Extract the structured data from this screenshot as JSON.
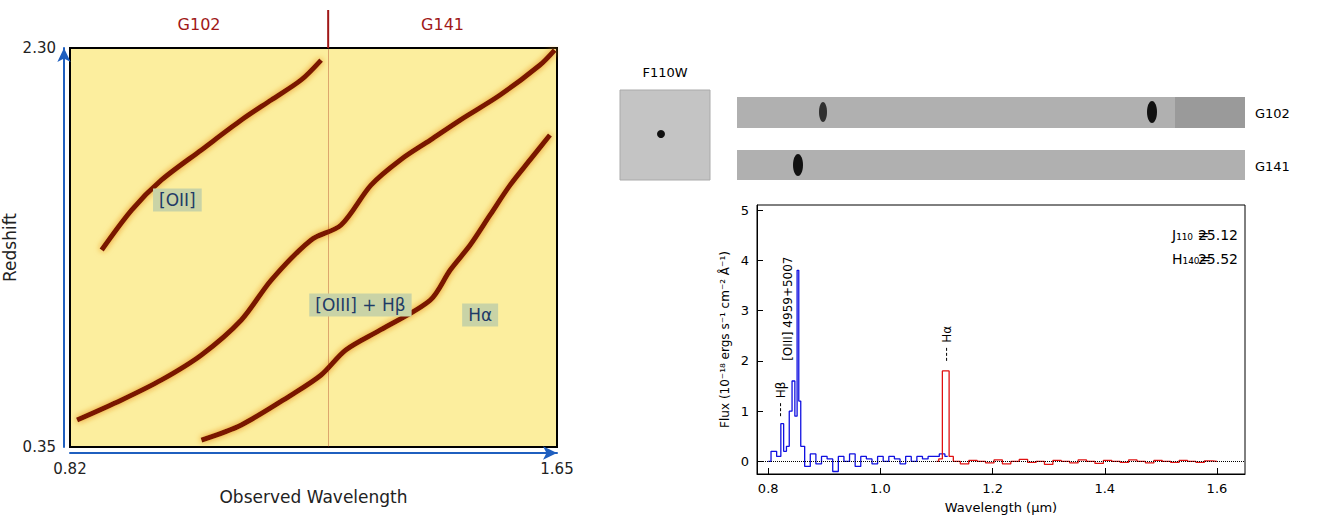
{
  "chart_data": [
    {
      "type": "line",
      "x_label": "Observed Wavelength",
      "y_label": "Redshift",
      "xlim": [
        0.82,
        1.65
      ],
      "ylim": [
        0.35,
        2.3
      ],
      "xticks": [
        0.82,
        1.65
      ],
      "yticks": [
        0.35,
        {
          "value": 2.3,
          "label": "2.30"
        }
      ],
      "grisms": [
        "G102",
        "G141"
      ],
      "grism_boundary": 1.26,
      "series": [
        {
          "name": "[OII]",
          "color": "#7a1605",
          "label_x": 1.003,
          "label_y": 1.557,
          "x": [
            0.874,
            0.925,
            0.976,
            1.044,
            1.112,
            1.163,
            1.214,
            1.248
          ],
          "values": [
            1.313,
            1.508,
            1.655,
            1.802,
            1.948,
            2.046,
            2.144,
            2.241
          ]
        },
        {
          "name": "[OIII] + Hβ",
          "color": "#7a1605",
          "label_x": 1.315,
          "label_y": 1.044,
          "x": [
            0.832,
            0.908,
            0.976,
            1.044,
            1.112,
            1.163,
            1.231,
            1.282,
            1.333,
            1.383,
            1.434,
            1.485,
            1.553,
            1.621,
            1.646
          ],
          "values": [
            0.482,
            0.58,
            0.678,
            0.8,
            0.971,
            1.166,
            1.362,
            1.435,
            1.63,
            1.753,
            1.85,
            1.948,
            2.07,
            2.217,
            2.29
          ]
        },
        {
          "name": "Hα",
          "color": "#7a1605",
          "label_x": 1.519,
          "label_y": 0.995,
          "x": [
            1.044,
            1.112,
            1.197,
            1.248,
            1.29,
            1.349,
            1.434,
            1.468,
            1.502,
            1.536,
            1.57,
            1.604,
            1.638
          ],
          "values": [
            0.384,
            0.458,
            0.604,
            0.702,
            0.824,
            0.922,
            1.068,
            1.215,
            1.337,
            1.484,
            1.63,
            1.753,
            1.875
          ]
        }
      ]
    },
    {
      "type": "line",
      "x_label": "Wavelength (µm)",
      "y_label": "Flux (10⁻¹⁸ ergs s⁻¹ cm⁻² Å⁻¹)",
      "xlim": [
        0.78,
        1.65
      ],
      "ylim": [
        -0.25,
        5.1
      ],
      "xticks": [
        0.8,
        {
          "value": 1,
          "label": "1.0"
        },
        1.2,
        1.4,
        1.6
      ],
      "yticks": [
        0,
        1,
        2,
        3,
        4,
        5
      ],
      "series": [
        {
          "color": "#1010e0",
          "line_style": "solid",
          "x": [
            0.8,
            0.81,
            0.82,
            0.825,
            0.83,
            0.835,
            0.84,
            0.845,
            0.85,
            0.853,
            0.856,
            0.86,
            0.87,
            0.88,
            0.89,
            0.9,
            0.91,
            0.92,
            0.93,
            0.94,
            0.95,
            0.96,
            0.97,
            0.98,
            0.99,
            1.0,
            1.01,
            1.02,
            1.03,
            1.04,
            1.05,
            1.06,
            1.07,
            1.08,
            1.09,
            1.1,
            1.11,
            1.12
          ],
          "values": [
            0.0,
            0.2,
            0.1,
            0.75,
            0.2,
            0.3,
            1.0,
            1.6,
            0.9,
            3.8,
            1.2,
            0.3,
            -0.1,
            0.15,
            -0.05,
            0.1,
            0.05,
            -0.2,
            0.1,
            0.0,
            0.15,
            -0.1,
            0.1,
            0.05,
            -0.05,
            0.1,
            0.0,
            0.1,
            0.05,
            -0.05,
            0.1,
            0.0,
            0.1,
            0.05,
            0.1,
            0.1,
            0.15,
            0.1
          ]
        },
        {
          "color": "#e01010",
          "line_style": "solid",
          "x": [
            1.1,
            1.108,
            1.113,
            1.12,
            1.125,
            1.135,
            1.15,
            1.165,
            1.18,
            1.195,
            1.21,
            1.225,
            1.24,
            1.255,
            1.27,
            1.285,
            1.3,
            1.315,
            1.33,
            1.345,
            1.36,
            1.375,
            1.39,
            1.405,
            1.42,
            1.435,
            1.45,
            1.465,
            1.48,
            1.495,
            1.51,
            1.525,
            1.54,
            1.555,
            1.57,
            1.585,
            1.6
          ],
          "values": [
            0.0,
            0.05,
            1.8,
            1.8,
            0.1,
            0.0,
            -0.05,
            0.02,
            0.0,
            -0.03,
            0.03,
            -0.05,
            0.0,
            0.04,
            -0.02,
            0.0,
            -0.06,
            0.02,
            0.0,
            -0.03,
            0.03,
            0.0,
            -0.04,
            0.02,
            0.0,
            -0.02,
            0.03,
            0.0,
            -0.03,
            0.02,
            0.0,
            -0.02,
            0.02,
            0.0,
            -0.02,
            0.01,
            0.0
          ]
        }
      ],
      "reference_lines": [
        {
          "y": 0,
          "line_style": "dotted"
        }
      ],
      "annotations": [
        {
          "text": "Hβ",
          "x": 0.822,
          "y": 0.9,
          "line_style": "dashed"
        },
        {
          "text": "[OIII] 4959+5007",
          "x": 0.836,
          "y": 2.0
        },
        {
          "text": "Hα",
          "x": 1.118,
          "y": 2.0,
          "line_style": "dashed"
        }
      ],
      "magnitudes": [
        {
          "text": "J₁₁₀ =",
          "value": 25.12
        },
        {
          "text": "H₁₄₀=",
          "value": 25.52
        }
      ]
    }
  ],
  "images": [
    {
      "label": "F110W"
    },
    {
      "label": "G102"
    },
    {
      "label": "G141"
    }
  ]
}
